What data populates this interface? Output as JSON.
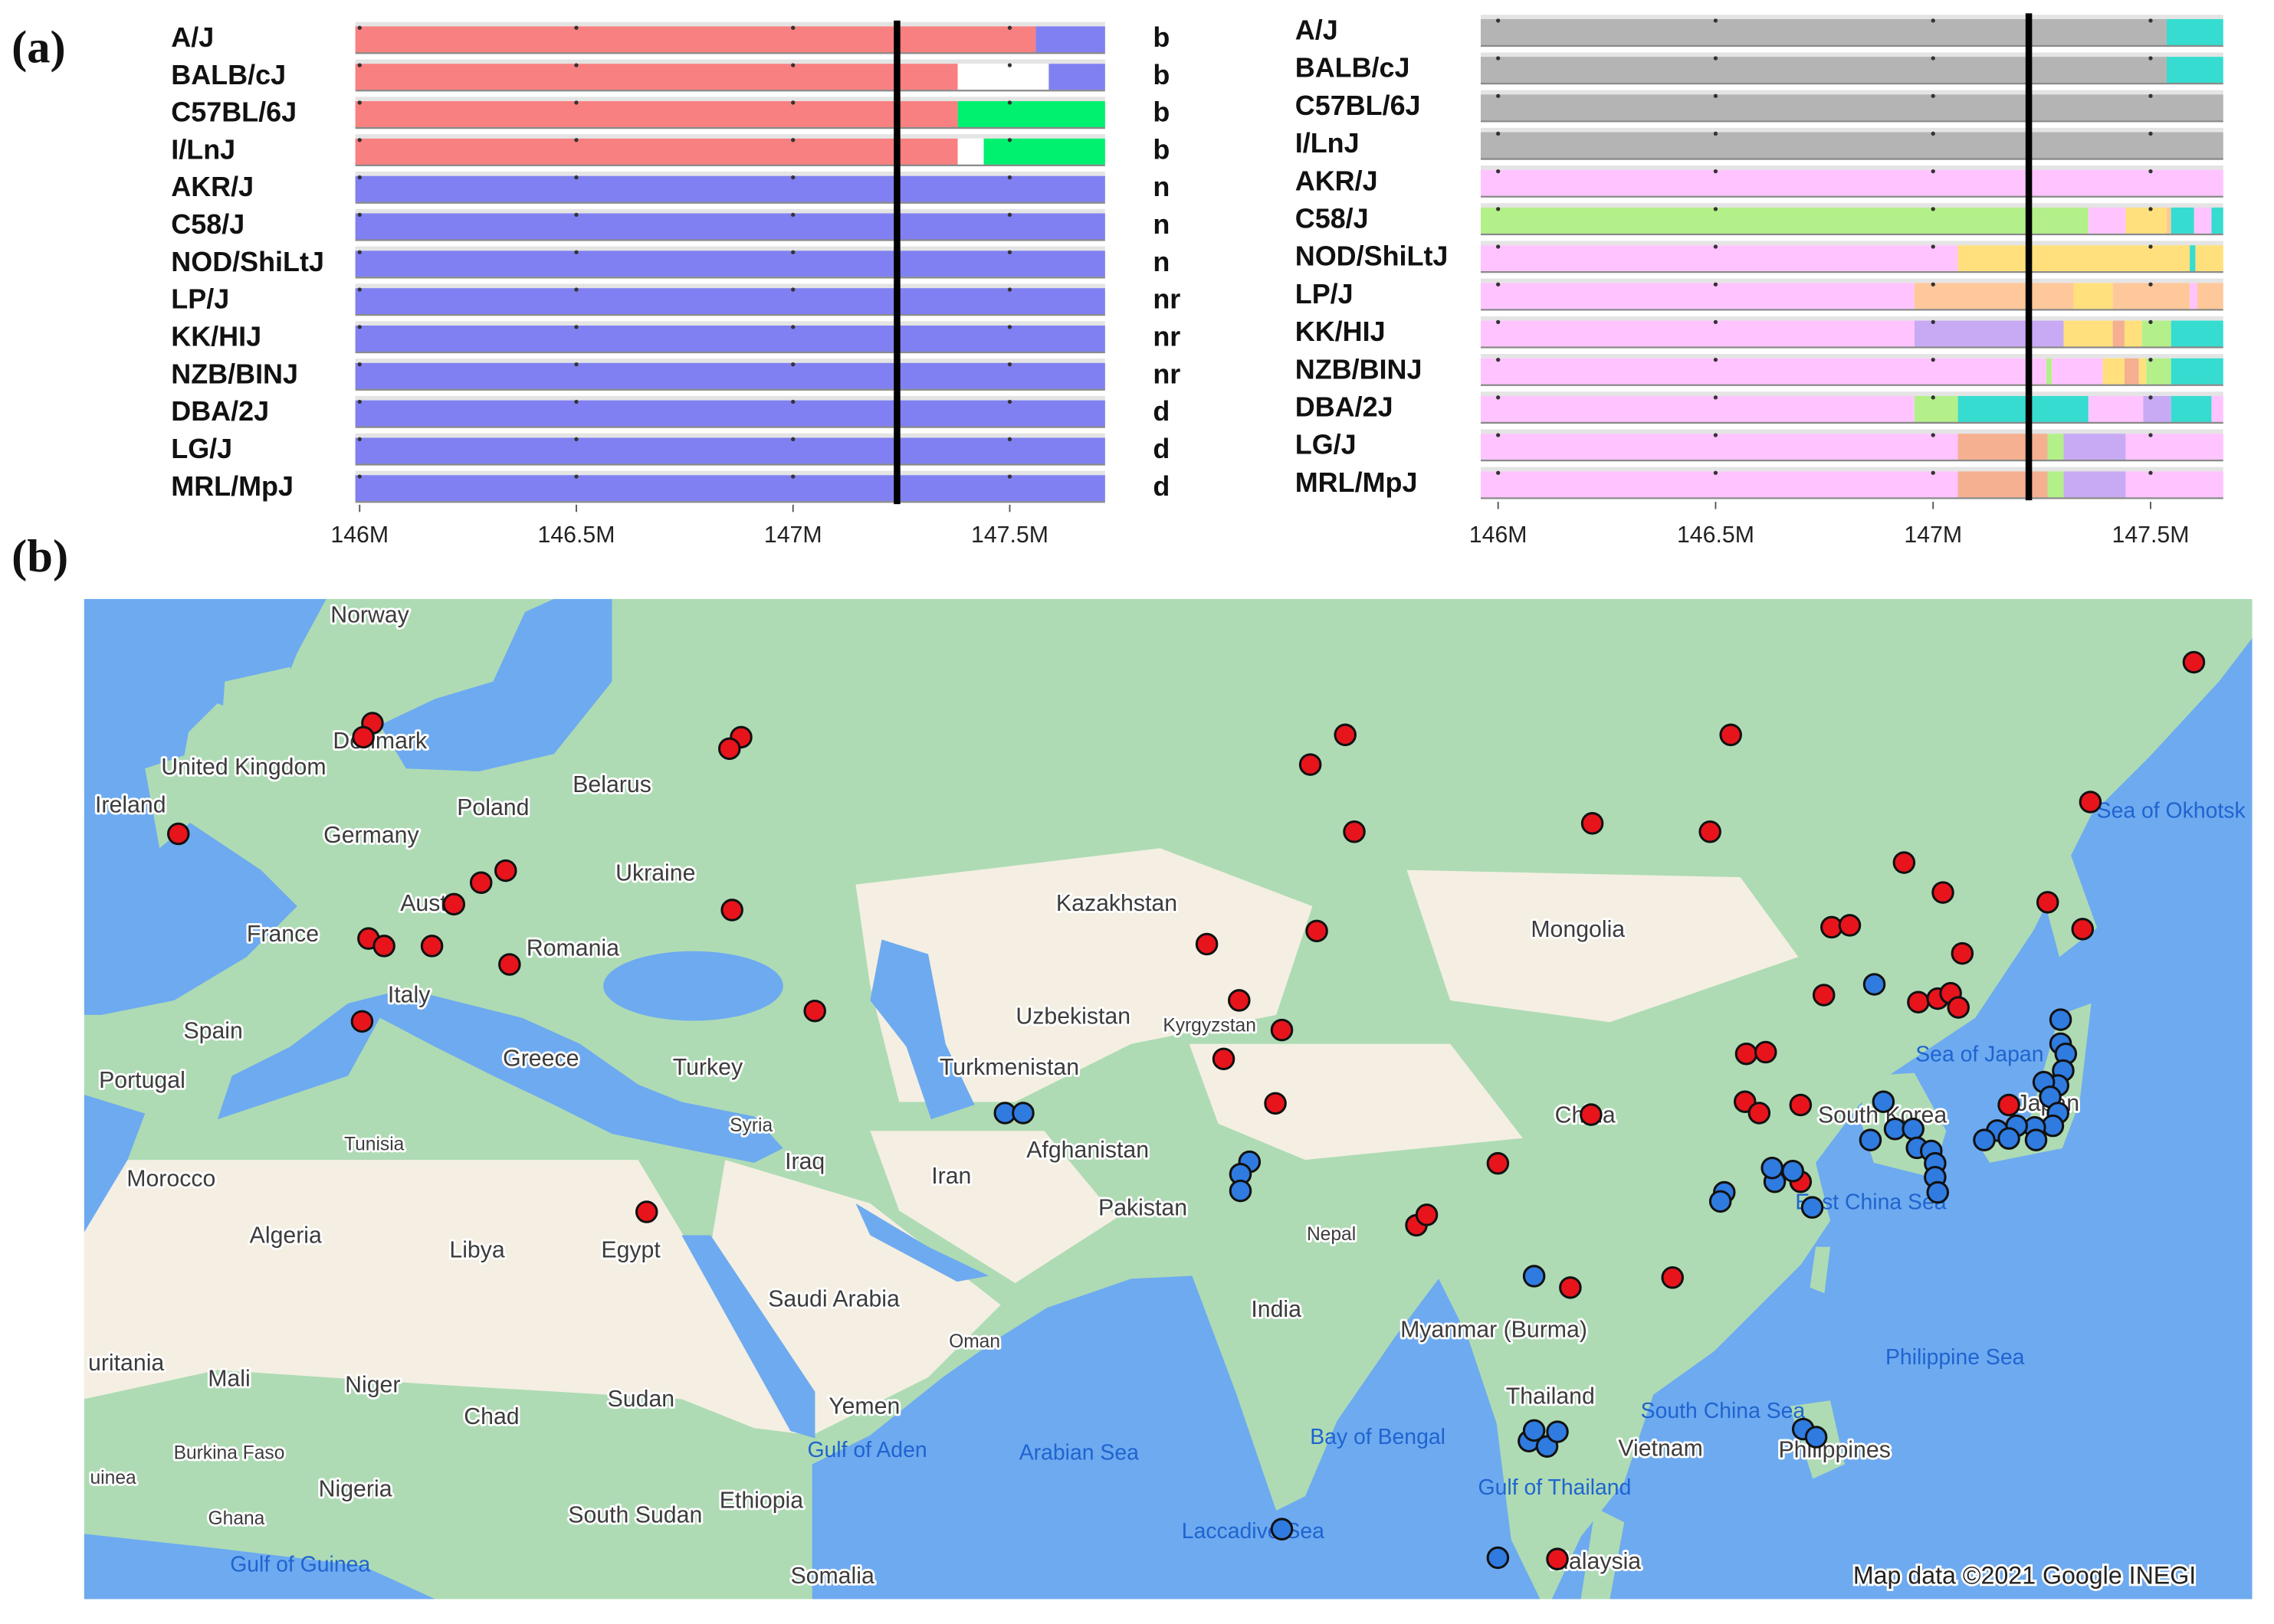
{
  "chart_data": [
    {
      "type": "haplotype",
      "panel": "(a)",
      "xlim": [
        145.99,
        147.72
      ],
      "xticks": [
        {
          "value": 146,
          "label": "146M"
        },
        {
          "value": 146.5,
          "label": "146.5M"
        },
        {
          "value": 147,
          "label": "147M"
        },
        {
          "value": 147.5,
          "label": "147.5M"
        }
      ],
      "marker": 147.24,
      "rows": [
        {
          "name": "A/J",
          "allele": "b",
          "breaks": [
            145.99,
            147.56,
            147.72
          ],
          "colors": [
            "#f88080",
            "#8080f2"
          ]
        },
        {
          "name": "BALB/cJ",
          "allele": "b",
          "breaks": [
            145.99,
            147.38,
            147.59,
            147.72
          ],
          "colors": [
            "#f88080",
            "#ffffff",
            "#8080f2"
          ]
        },
        {
          "name": "C57BL/6J",
          "allele": "b",
          "breaks": [
            145.99,
            147.38,
            147.72
          ],
          "colors": [
            "#f88080",
            "#00f070"
          ]
        },
        {
          "name": "I/LnJ",
          "allele": "b",
          "breaks": [
            145.99,
            147.38,
            147.44,
            147.72
          ],
          "colors": [
            "#f88080",
            "#ffffff",
            "#00f070"
          ]
        },
        {
          "name": "AKR/J",
          "allele": "n",
          "breaks": [
            145.99,
            147.72
          ],
          "colors": [
            "#8080f2"
          ]
        },
        {
          "name": "C58/J",
          "allele": "n",
          "breaks": [
            145.99,
            147.72
          ],
          "colors": [
            "#8080f2"
          ]
        },
        {
          "name": "NOD/ShiLtJ",
          "allele": "n",
          "breaks": [
            145.99,
            147.72
          ],
          "colors": [
            "#8080f2"
          ]
        },
        {
          "name": "LP/J",
          "allele": "nr",
          "breaks": [
            145.99,
            147.72
          ],
          "colors": [
            "#8080f2"
          ]
        },
        {
          "name": "KK/HIJ",
          "allele": "nr",
          "breaks": [
            145.99,
            147.72
          ],
          "colors": [
            "#8080f2"
          ]
        },
        {
          "name": "NZB/BINJ",
          "allele": "nr",
          "breaks": [
            145.99,
            147.72
          ],
          "colors": [
            "#8080f2"
          ]
        },
        {
          "name": "DBA/2J",
          "allele": "d",
          "breaks": [
            145.99,
            147.72
          ],
          "colors": [
            "#8080f2"
          ]
        },
        {
          "name": "LG/J",
          "allele": "d",
          "breaks": [
            145.99,
            147.72
          ],
          "colors": [
            "#8080f2"
          ]
        },
        {
          "name": "MRL/MpJ",
          "allele": "d",
          "breaks": [
            145.99,
            147.72
          ],
          "colors": [
            "#8080f2"
          ]
        }
      ]
    },
    {
      "type": "haplotype",
      "xlim": [
        145.96,
        147.667
      ],
      "xticks": [
        {
          "value": 146,
          "label": "146M"
        },
        {
          "value": 146.5,
          "label": "146.5M"
        },
        {
          "value": 147,
          "label": "147M"
        },
        {
          "value": 147.5,
          "label": "147.5M"
        }
      ],
      "marker": 147.22,
      "rows": [
        {
          "name": "A/J",
          "breaks": [
            145.96,
            147.537,
            147.667
          ],
          "colors": [
            "#b4b4b4",
            "#36dcd0"
          ]
        },
        {
          "name": "BALB/cJ",
          "breaks": [
            145.96,
            147.537,
            147.667
          ],
          "colors": [
            "#b4b4b4",
            "#36dcd0"
          ]
        },
        {
          "name": "C57BL/6J",
          "breaks": [
            145.96,
            147.667
          ],
          "colors": [
            "#b4b4b4"
          ]
        },
        {
          "name": "I/LnJ",
          "breaks": [
            145.96,
            147.667
          ],
          "colors": [
            "#b4b4b4"
          ]
        },
        {
          "name": "AKR/J",
          "breaks": [
            145.96,
            147.667
          ],
          "colors": [
            "#ffc4ff"
          ]
        },
        {
          "name": "C58/J",
          "breaks": [
            145.96,
            147.357,
            147.443,
            147.537,
            147.547,
            147.6,
            147.64,
            147.667
          ],
          "colors": [
            "#b4f08a",
            "#ffc4ff",
            "#ffe07c",
            "#ffc89a",
            "#36dcd0",
            "#ffc4ff",
            "#36dcd0"
          ]
        },
        {
          "name": "NOD/ShiLtJ",
          "breaks": [
            145.96,
            147.057,
            147.59,
            147.603,
            147.667
          ],
          "colors": [
            "#ffc4ff",
            "#ffe07c",
            "#36dcd0",
            "#ffe07c"
          ]
        },
        {
          "name": "LP/J",
          "breaks": [
            145.96,
            146.957,
            147.323,
            147.413,
            147.59,
            147.607,
            147.667
          ],
          "colors": [
            "#ffc4ff",
            "#ffc89a",
            "#ffe07c",
            "#ffc89a",
            "#ffc4ff",
            "#ffc89a"
          ]
        },
        {
          "name": "KK/HIJ",
          "breaks": [
            145.96,
            146.957,
            147.3,
            147.413,
            147.44,
            147.48,
            147.547,
            147.667
          ],
          "colors": [
            "#ffc4ff",
            "#c8aaf4",
            "#ffe07c",
            "#f4b090",
            "#ffe07c",
            "#b4f08a",
            "#36dcd0"
          ]
        },
        {
          "name": "NZB/BINJ",
          "breaks": [
            145.96,
            147.26,
            147.273,
            147.39,
            147.44,
            147.473,
            147.49,
            147.547,
            147.667
          ],
          "colors": [
            "#ffc4ff",
            "#b4f08a",
            "#ffc4ff",
            "#ffe07c",
            "#f4b090",
            "#ffe07c",
            "#b4f08a",
            "#36dcd0"
          ]
        },
        {
          "name": "DBA/2J",
          "breaks": [
            145.96,
            146.957,
            147.057,
            147.357,
            147.483,
            147.547,
            147.64,
            147.667
          ],
          "colors": [
            "#ffc4ff",
            "#b4f08a",
            "#36dcd0",
            "#ffc4ff",
            "#c8aaf4",
            "#36dcd0",
            "#ffc4ff"
          ]
        },
        {
          "name": "LG/J",
          "breaks": [
            145.96,
            147.057,
            147.263,
            147.3,
            147.443,
            147.667
          ],
          "colors": [
            "#ffc4ff",
            "#f4b090",
            "#b4f08a",
            "#c8aaf4",
            "#ffc4ff"
          ]
        },
        {
          "name": "MRL/MpJ",
          "breaks": [
            145.96,
            147.057,
            147.263,
            147.3,
            147.443,
            147.667
          ],
          "colors": [
            "#ffc4ff",
            "#f4b090",
            "#b4f08a",
            "#c8aaf4",
            "#ffc4ff"
          ]
        }
      ]
    },
    {
      "type": "map",
      "panel": "(b)",
      "land_labels": [
        "Norway",
        "Denmark",
        "United Kingdom",
        "Ireland",
        "Poland",
        "Belarus",
        "Germany",
        "Ukraine",
        "Aust",
        "France",
        "Romania",
        "Italy",
        "Spain",
        "Portugal",
        "Greece",
        "Turkey",
        "Kazakhstan",
        "Uzbekistan",
        "Kyrgyzstan",
        "Turkmenistan",
        "Mongolia",
        "Syria",
        "Iraq",
        "Iran",
        "Afghanistan",
        "Pakistan",
        "Tunisia",
        "Morocco",
        "Algeria",
        "Libya",
        "Egypt",
        "Nepal",
        "China",
        "South Korea",
        "Japan",
        "India",
        "Myanmar (Burma)",
        "Saudi Arabia",
        "Oman",
        "Yemen",
        "uritania",
        "Mali",
        "Niger",
        "Chad",
        "Sudan",
        "Burkina Faso",
        "uinea",
        "Nigeria",
        "Ghana",
        "South Sudan",
        "Ethiopia",
        "Somalia",
        "Thailand",
        "Vietnam",
        "Philippines",
        "Malaysia"
      ],
      "water_labels": [
        "Sea of Okhotsk",
        "Sea of Japan",
        "East China Sea",
        "Gulf of Aden",
        "Arabian Sea",
        "Bay of Bengal",
        "Laccadive Sea",
        "Gulf of Thailand",
        "South China Sea",
        "Philippine Sea",
        "Gulf of Guinea"
      ],
      "credit": "Map data ©2021 Google INEGI",
      "series": [
        {
          "color": "#e8141c",
          "lon": [
            151.5,
            10.7,
            10.0,
            39.2,
            38.3,
            85.9,
            83.2,
            -4.3,
            86.6,
            105.0,
            114.1,
            115.7,
            143.5,
            21.0,
            19.1,
            17.0,
            38.5,
            10.4,
            11.6,
            15.3,
            21.3,
            9.9,
            44.9,
            75.2,
            83.7,
            77.7,
            81.0,
            76.5,
            80.5,
            104.9,
            97.7,
            91.4,
            92.2,
            103.3,
            111.2,
            31.9,
            102.3,
            129.1,
            132.1,
            140.2,
            142.9,
            123.5,
            124.9,
            133.6,
            122.9,
            130.2,
            131.7,
            132.7,
            133.3,
            116.9,
            118.4,
            116.8,
            117.9,
            121.1,
            121.1,
            137.2
          ],
          "lat": [
            59.2,
            56.7,
            56.1,
            56.1,
            55.6,
            56.2,
            54.9,
            51.7,
            51.8,
            52.2,
            51.8,
            56.2,
            53.2,
            49.9,
            49.3,
            48.2,
            47.9,
            46.4,
            46.0,
            46.0,
            45.0,
            41.8,
            42.4,
            46.1,
            46.8,
            43.0,
            41.3,
            39.6,
            36.9,
            36.2,
            33.1,
            29.0,
            29.7,
            24.7,
            25.4,
            29.9,
            4.5,
            50.3,
            48.8,
            48.3,
            46.9,
            47.0,
            47.1,
            45.6,
            43.3,
            42.9,
            43.1,
            43.4,
            42.6,
            39.9,
            40.0,
            37.0,
            36.3,
            36.8,
            31.9,
            36.8
          ]
        },
        {
          "color": "#2f7be0",
          "lon": [
            59.6,
            61.0,
            78.5,
            77.8,
            77.8,
            126.8,
            127.5,
            126.5,
            128.4,
            129.8,
            130.1,
            131.2,
            131.5,
            131.5,
            131.7,
            115.2,
            114.9,
            119.1,
            118.9,
            120.5,
            122.0,
            141.2,
            141.2,
            141.6,
            141.4,
            141.0,
            139.9,
            140.4,
            141.0,
            140.6,
            139.2,
            139.3,
            137.8,
            136.3,
            135.3,
            137.2,
            100.5,
            100.1,
            101.5,
            102.3,
            100.5,
            121.3,
            122.3,
            81.0,
            97.7
          ],
          "lat": [
            36.3,
            36.3,
            33.2,
            32.4,
            31.3,
            43.9,
            37.0,
            34.6,
            35.3,
            35.3,
            34.1,
            33.9,
            33.1,
            32.2,
            31.2,
            31.2,
            30.6,
            31.9,
            32.8,
            32.6,
            30.2,
            41.9,
            40.5,
            39.9,
            38.9,
            38.0,
            38.2,
            37.3,
            36.3,
            35.5,
            35.4,
            34.6,
            35.5,
            35.2,
            34.6,
            34.7,
            25.5,
            13.5,
            13.1,
            14.2,
            14.3,
            14.4,
            13.8,
            6.8,
            4.6
          ]
        }
      ]
    }
  ]
}
